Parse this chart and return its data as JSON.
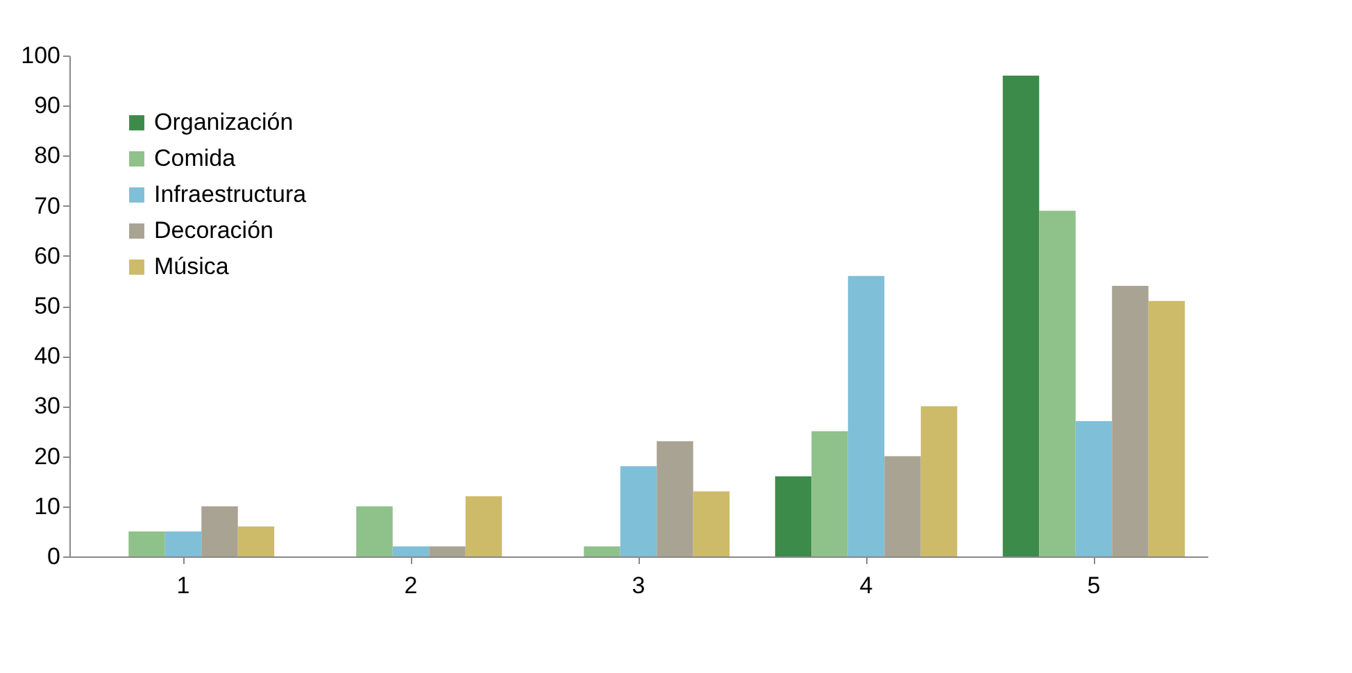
{
  "chart_data": {
    "type": "bar",
    "categories": [
      "1",
      "2",
      "3",
      "4",
      "5"
    ],
    "series": [
      {
        "name": "Organización",
        "color": "#3d8b4a",
        "values": [
          0,
          0,
          0,
          16,
          96
        ]
      },
      {
        "name": "Comida",
        "color": "#8fc18a",
        "values": [
          5,
          10,
          2,
          25,
          69
        ]
      },
      {
        "name": "Infraestructura",
        "color": "#7fbfd8",
        "values": [
          5,
          2,
          18,
          56,
          27
        ]
      },
      {
        "name": "Decoración",
        "color": "#a8a393",
        "values": [
          10,
          2,
          23,
          20,
          54
        ]
      },
      {
        "name": "Música",
        "color": "#cdbb6a",
        "values": [
          6,
          12,
          13,
          30,
          51
        ]
      }
    ],
    "ylim": [
      0,
      100
    ],
    "yticks": [
      0,
      10,
      20,
      30,
      40,
      50,
      60,
      70,
      80,
      90,
      100
    ],
    "grid": false,
    "legend": "top left"
  }
}
